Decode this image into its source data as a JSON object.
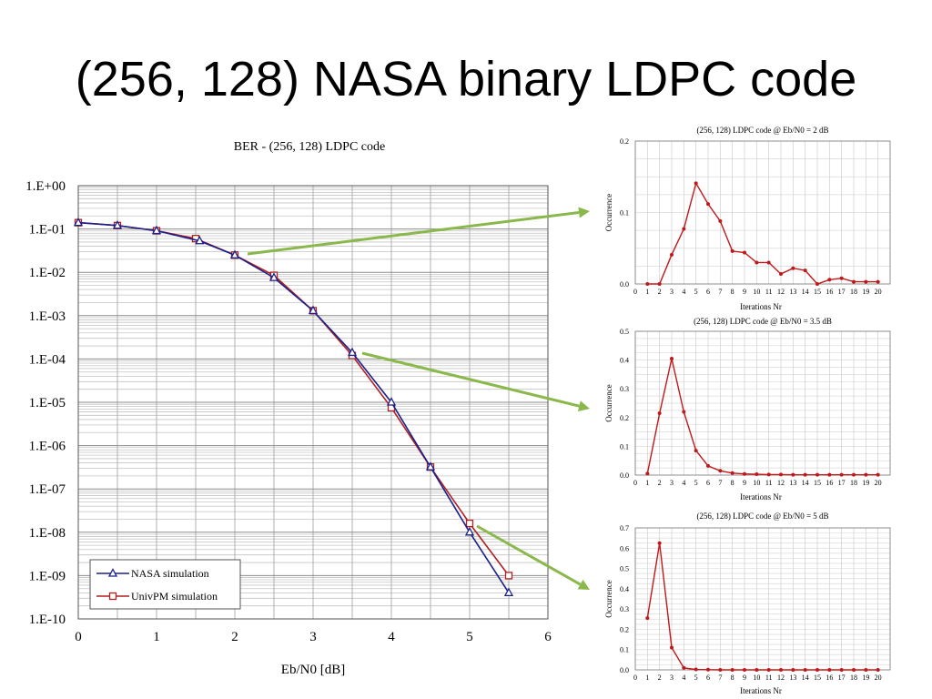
{
  "slide": {
    "title": "(256, 128) NASA binary LDPC code"
  },
  "colors": {
    "nasa": "#1a1f8a",
    "univpm": "#b02020",
    "iter": "#c0181a",
    "arrow": "#8ab84a",
    "grid": "#c4c4c4"
  },
  "chart_data": [
    {
      "type": "line",
      "title": "BER - (256, 128) LDPC code",
      "xlabel": "Eb/N0 [dB]",
      "ylabel": "",
      "xlim": [
        0,
        6
      ],
      "ylim": [
        1e-10,
        1
      ],
      "yscale": "log",
      "grid": true,
      "legend_position": "bottom-left",
      "xticks": [
        "0",
        "1",
        "2",
        "3",
        "4",
        "5",
        "6"
      ],
      "yticks": [
        "1.E+00",
        "1.E-01",
        "1.E-02",
        "1.E-03",
        "1.E-04",
        "1.E-05",
        "1.E-06",
        "1.E-07",
        "1.E-08",
        "1.E-09",
        "1.E-10"
      ],
      "series": [
        {
          "name": "NASA simulation",
          "marker": "triangle",
          "x": [
            0,
            0.5,
            1,
            1.55,
            2,
            2.5,
            3,
            3.5,
            4,
            4.5,
            5,
            5.5
          ],
          "y": [
            0.14,
            0.12,
            0.091,
            0.053,
            0.025,
            0.0075,
            0.0013,
            0.00014,
            1e-05,
            3.2e-07,
            1e-08,
            4e-10
          ]
        },
        {
          "name": "UnivPM simulation",
          "marker": "square",
          "x": [
            0,
            0.5,
            1,
            1.5,
            2,
            2.5,
            3,
            3.5,
            4,
            4.5,
            5,
            5.5
          ],
          "y": [
            0.14,
            0.12,
            0.091,
            0.06,
            0.025,
            0.0085,
            0.0013,
            0.00012,
            7.5e-06,
            3.2e-07,
            1.6e-08,
            1e-09
          ]
        }
      ]
    },
    {
      "type": "line",
      "title": "(256, 128) LDPC code @ Eb/N0 = 2 dB",
      "xlabel": "Iterations Nr",
      "ylabel": "Occurrence",
      "ylim": [
        0,
        0.2
      ],
      "yticks": [
        "0.0",
        "0.1",
        "0.2"
      ],
      "x": [
        1,
        2,
        3,
        4,
        5,
        6,
        7,
        8,
        9,
        10,
        11,
        12,
        13,
        14,
        15,
        16,
        17,
        18,
        19,
        20
      ],
      "values": [
        0.0,
        0.0,
        0.041,
        0.077,
        0.141,
        0.112,
        0.088,
        0.046,
        0.044,
        0.03,
        0.03,
        0.014,
        0.022,
        0.019,
        0.0,
        0.006,
        0.008,
        0.003,
        0.003,
        0.003
      ]
    },
    {
      "type": "line",
      "title": "(256, 128) LDPC code @ Eb/N0 = 3.5 dB",
      "xlabel": "Iterations Nr",
      "ylabel": "Occurrence",
      "ylim": [
        0,
        0.5
      ],
      "yticks": [
        "0.0",
        "0.1",
        "0.2",
        "0.3",
        "0.4",
        "0.5"
      ],
      "x": [
        1,
        2,
        3,
        4,
        5,
        6,
        7,
        8,
        9,
        10,
        11,
        12,
        13,
        14,
        15,
        16,
        17,
        18,
        19,
        20
      ],
      "values": [
        0.005,
        0.215,
        0.405,
        0.22,
        0.085,
        0.032,
        0.015,
        0.007,
        0.004,
        0.003,
        0.002,
        0.002,
        0.001,
        0.001,
        0.001,
        0.001,
        0.001,
        0.001,
        0.001,
        0.001
      ]
    },
    {
      "type": "line",
      "title": "(256, 128) LDPC code @ Eb/N0 = 5 dB",
      "xlabel": "Iterations Nr",
      "ylabel": "Occurrence",
      "ylim": [
        0,
        0.7
      ],
      "yticks": [
        "0.0",
        "0.1",
        "0.2",
        "0.3",
        "0.4",
        "0.5",
        "0.6",
        "0.7"
      ],
      "x": [
        1,
        2,
        3,
        4,
        5,
        6,
        7,
        8,
        9,
        10,
        11,
        12,
        13,
        14,
        15,
        16,
        17,
        18,
        19,
        20
      ],
      "values": [
        0.255,
        0.625,
        0.11,
        0.01,
        0.002,
        0.001,
        0.0,
        0.0,
        0.0,
        0.0,
        0.0,
        0.0,
        0.0,
        0.0,
        0.0,
        0.0,
        0.0,
        0.0,
        0.0,
        0.0
      ]
    }
  ]
}
